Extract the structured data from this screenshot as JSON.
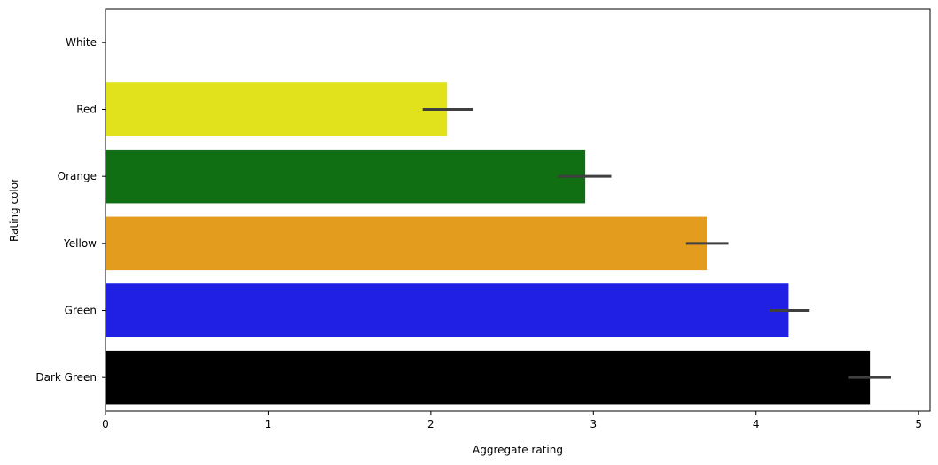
{
  "chart_data": {
    "type": "bar",
    "orientation": "horizontal",
    "categories": [
      "White",
      "Red",
      "Orange",
      "Yellow",
      "Green",
      "Dark Green"
    ],
    "values": [
      0.0,
      2.1,
      2.95,
      3.7,
      4.2,
      4.7
    ],
    "error_low": [
      0.0,
      1.95,
      2.78,
      3.57,
      4.08,
      4.57
    ],
    "error_high": [
      0.0,
      2.26,
      3.11,
      3.83,
      4.33,
      4.83
    ],
    "bar_colors": [
      "#ffffff",
      "#e1e11c",
      "#0f6f12",
      "#e49c1f",
      "#1f20e4",
      "#000000"
    ],
    "error_color": "#3f3f3f",
    "xlabel": "Aggregate rating",
    "ylabel": "Rating color",
    "xlim": [
      0,
      5.07
    ],
    "xticks": [
      0,
      1,
      2,
      3,
      4,
      5
    ],
    "grid": false,
    "legend": "none"
  }
}
